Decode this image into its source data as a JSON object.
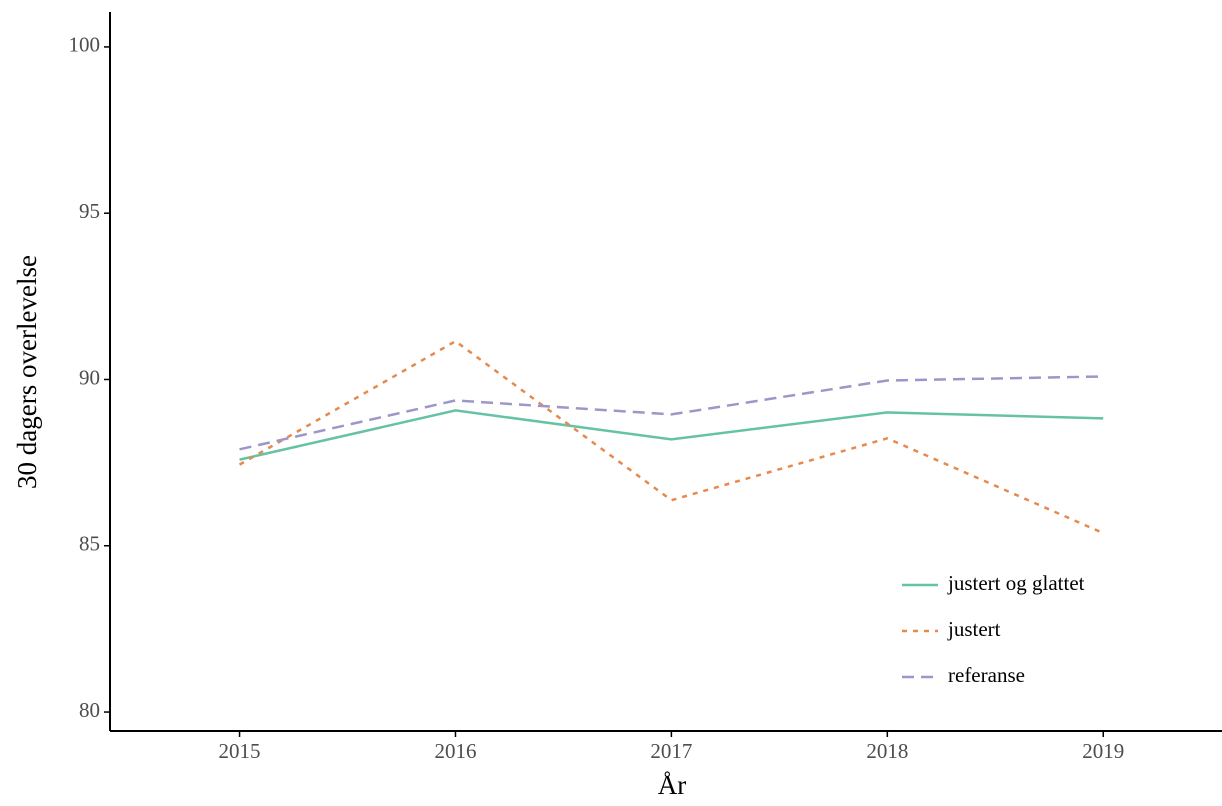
{
  "chart_data": {
    "type": "line",
    "x_label": "År",
    "y_label": "30 dagers overlevelse",
    "x": [
      2015,
      2016,
      2017,
      2018,
      2019
    ],
    "xlim": [
      2014.4,
      2019.55
    ],
    "xticks": [
      2015,
      2016,
      2017,
      2018,
      2019
    ],
    "ylim": [
      79.43,
      101.05
    ],
    "yticks": [
      80,
      85,
      90,
      95,
      100
    ],
    "grid": false,
    "legend_position": "bottom-right",
    "series": [
      {
        "name": "justert og glattet",
        "color": "#66c2a5",
        "dash": "solid",
        "values": [
          87.59,
          89.07,
          88.2,
          89.01,
          88.83
        ]
      },
      {
        "name": "justert",
        "color": "#e5894f",
        "dash": "dotted",
        "values": [
          87.44,
          91.15,
          86.37,
          88.23,
          85.38
        ]
      },
      {
        "name": "referanse",
        "color": "#9c97c8",
        "dash": "dashed",
        "values": [
          87.9,
          89.37,
          88.95,
          89.97,
          90.09
        ]
      }
    ]
  }
}
